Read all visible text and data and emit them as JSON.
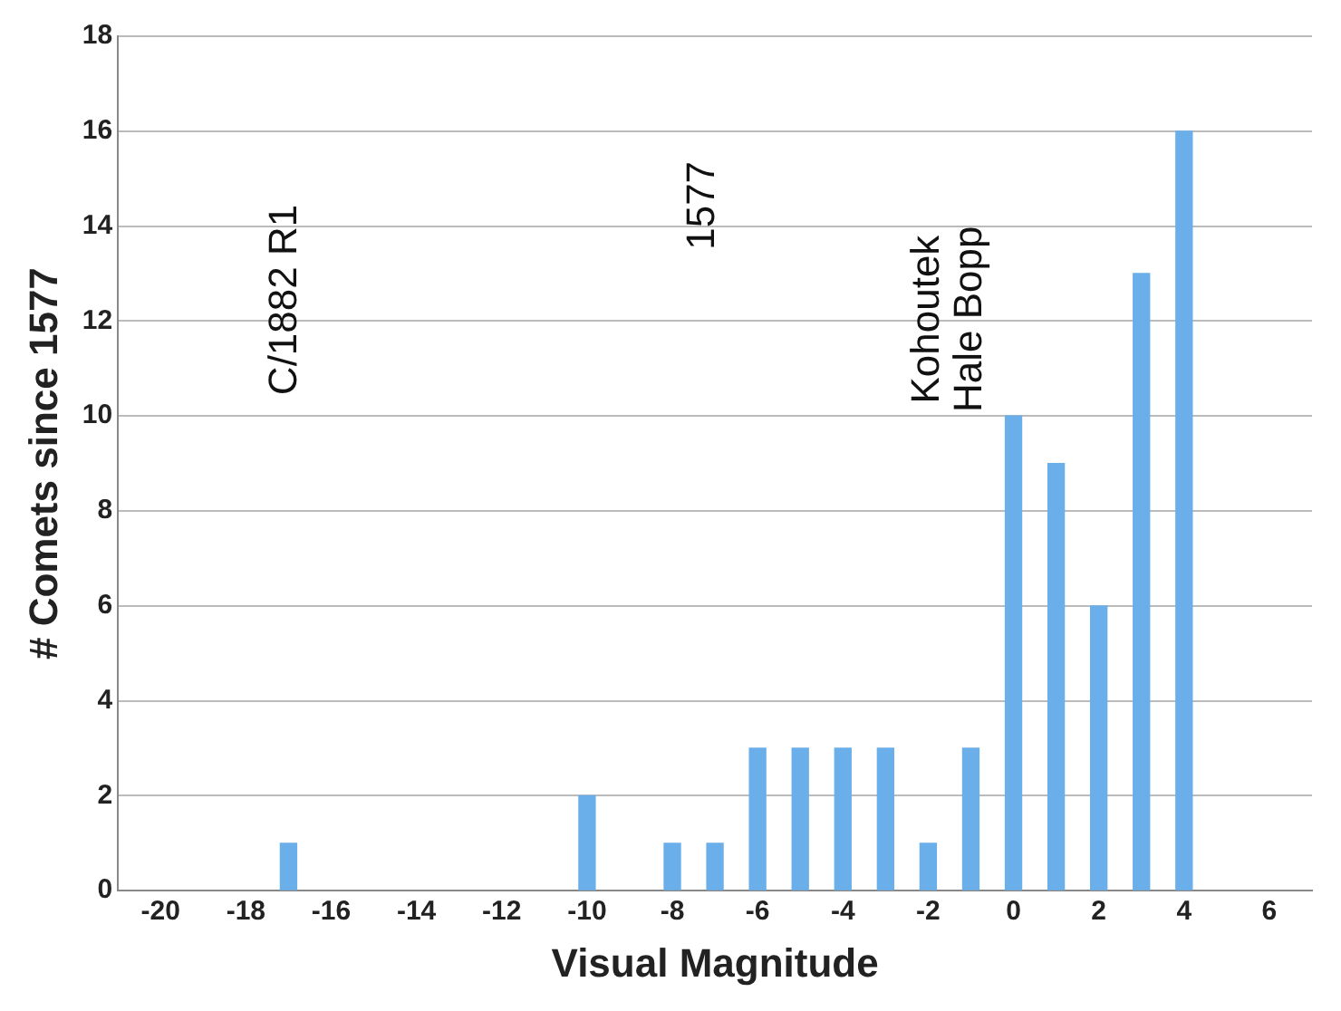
{
  "chart_data": {
    "type": "bar",
    "xlabel": "Visual Magnitude",
    "ylabel": "# Comets since 1577",
    "x": [
      -17,
      -10,
      -8,
      -7,
      -6,
      -5,
      -4,
      -3,
      -2,
      -1,
      0,
      1,
      2,
      3,
      4
    ],
    "values": [
      1,
      2,
      1,
      1,
      3,
      3,
      3,
      3,
      1,
      3,
      10,
      9,
      6,
      13,
      16
    ],
    "color": "#6aaeea",
    "xlim": [
      -21,
      7
    ],
    "xticks": [
      -20,
      -18,
      -16,
      -14,
      -12,
      -10,
      -8,
      -6,
      -4,
      -2,
      0,
      2,
      4,
      6
    ],
    "ylim": [
      0,
      18
    ],
    "yticks": [
      0,
      2,
      4,
      6,
      8,
      10,
      12,
      14,
      16,
      18
    ],
    "grid": "y",
    "annotations": [
      "C/1882 R1",
      "1577",
      "Kohoutek",
      "Hale Bopp"
    ]
  }
}
